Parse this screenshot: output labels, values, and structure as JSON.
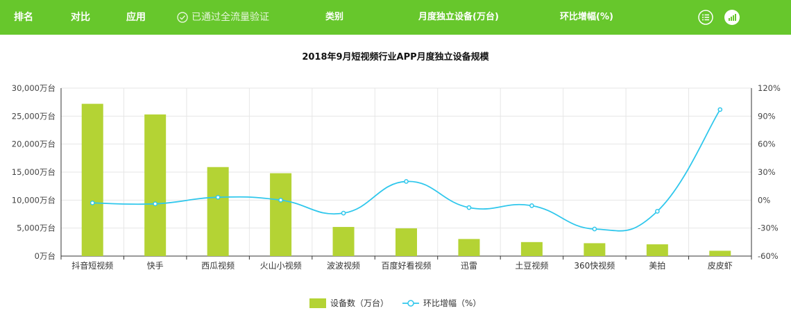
{
  "header": {
    "tabs": [
      {
        "label": "排名"
      },
      {
        "label": "对比"
      },
      {
        "label": "应用"
      }
    ],
    "verified_text": "已通过全流量验证",
    "columns": [
      "类别",
      "月度独立设备(万台)",
      "环比增幅(%)"
    ],
    "icons": [
      "list-view-icon",
      "chart-view-icon"
    ]
  },
  "chart_data": {
    "type": "bar",
    "title": "2018年9月短视频行业APP月度独立设备规模",
    "categories": [
      "抖音短视频",
      "快手",
      "西瓜视频",
      "火山小视频",
      "波波视频",
      "百度好看视频",
      "迅雷",
      "土豆视频",
      "360快视频",
      "美拍",
      "皮皮虾"
    ],
    "series": [
      {
        "name": "设备数（万台）",
        "kind": "bar",
        "axis": "left",
        "color": "#b4d334",
        "values": [
          27200,
          25300,
          15900,
          14800,
          5200,
          4950,
          3050,
          2500,
          2300,
          2100,
          950
        ]
      },
      {
        "name": "环比增幅（%）",
        "kind": "line",
        "axis": "right",
        "color": "#2fc7ec",
        "values": [
          -3,
          -4,
          3,
          0,
          -14,
          20,
          -8,
          -6,
          -31,
          -12,
          97
        ]
      }
    ],
    "left_axis": {
      "range": [
        0,
        30000
      ],
      "ticks": [
        "0万台",
        "5,000万台",
        "10,000万台",
        "15,000万台",
        "20,000万台",
        "25,000万台",
        "30,000万台"
      ]
    },
    "right_axis": {
      "range": [
        -60,
        120
      ],
      "ticks": [
        "-60%",
        "-30%",
        "0%",
        "30%",
        "60%",
        "90%",
        "120%"
      ]
    },
    "grid": true,
    "legend_position": "bottom-center"
  }
}
